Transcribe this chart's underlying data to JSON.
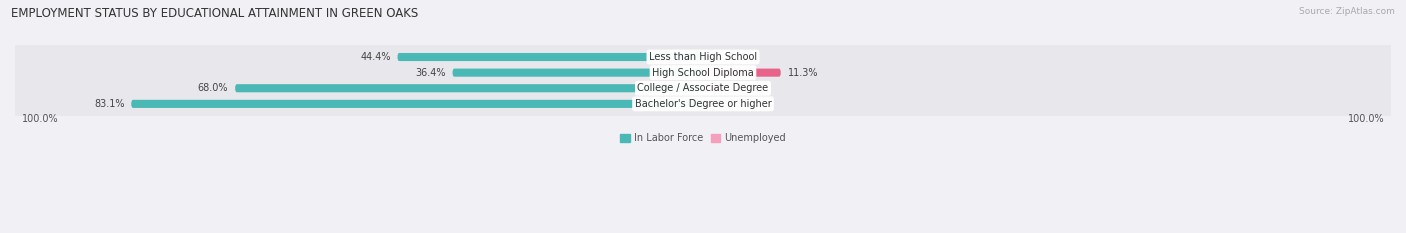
{
  "title": "EMPLOYMENT STATUS BY EDUCATIONAL ATTAINMENT IN GREEN OAKS",
  "source": "Source: ZipAtlas.com",
  "categories": [
    "Less than High School",
    "High School Diploma",
    "College / Associate Degree",
    "Bachelor's Degree or higher"
  ],
  "labor_force": [
    44.4,
    36.4,
    68.0,
    83.1
  ],
  "unemployed": [
    0.0,
    11.3,
    3.2,
    0.3
  ],
  "teal_color": "#4ab8b4",
  "pink_color_strong": "#e8638a",
  "pink_color_light": "#f4a0bc",
  "row_bg_color": "#e8e8ec",
  "fig_bg_color": "#f0f0f5",
  "axis_label_left": "100.0%",
  "axis_label_right": "100.0%",
  "title_fontsize": 8.5,
  "label_fontsize": 7,
  "bar_label_fontsize": 7,
  "category_fontsize": 7,
  "source_fontsize": 6.5,
  "unemployed_threshold": 5.0
}
